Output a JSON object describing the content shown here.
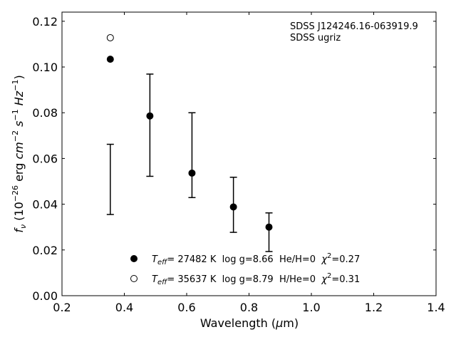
{
  "chart_data": {
    "type": "scatter",
    "xlabel": "Wavelength (μm)",
    "xlabel_parts": {
      "pre": "Wavelength (",
      "mu": "μ",
      "post": "m)"
    },
    "ylabel": "f_ν (10^-26 erg cm^-2 s^-1 Hz^-1)",
    "xlim": [
      0.2,
      1.4
    ],
    "ylim": [
      0.0,
      0.124
    ],
    "xticks": [
      "0.2",
      "0.4",
      "0.6",
      "0.8",
      "1.0",
      "1.2",
      "1.4"
    ],
    "yticks": [
      "0.00",
      "0.02",
      "0.04",
      "0.06",
      "0.08",
      "0.10",
      "0.12"
    ],
    "annotation": [
      "SDSS J124246.16-063919.9",
      "SDSS ugriz"
    ],
    "observed": [
      {
        "x": 0.355,
        "low": 0.0355,
        "high": 0.0662
      },
      {
        "x": 0.482,
        "low": 0.0522,
        "high": 0.0969
      },
      {
        "x": 0.617,
        "low": 0.0429,
        "high": 0.08
      },
      {
        "x": 0.75,
        "low": 0.0277,
        "high": 0.0518
      },
      {
        "x": 0.864,
        "low": 0.0193,
        "high": 0.0362
      }
    ],
    "series": [
      {
        "name": "T_eff= 27482 K  log g=8.66  He/H=0  χ²=0.27",
        "marker": "filled-circle",
        "x": [
          0.355,
          0.482,
          0.617,
          0.75,
          0.864
        ],
        "y": [
          0.1034,
          0.0786,
          0.0536,
          0.0388,
          0.03
        ]
      },
      {
        "name": "T_eff= 35637 K  log g=8.79  H/He=0  χ²=0.31",
        "marker": "open-circle",
        "x": [
          0.355
        ],
        "y": [
          0.1128
        ]
      }
    ],
    "legend_placement": "lower-center",
    "grid": false,
    "legend": [
      {
        "teff": "= 27482 K",
        "logg": "  log g=8.66  He/H=0  ",
        "chi": "=0.27"
      },
      {
        "teff": "= 35637 K",
        "logg": "  log g=8.79  H/He=0  ",
        "chi": "=0.31"
      }
    ],
    "colors": {
      "marker": "#000000",
      "axis": "#000000"
    }
  }
}
